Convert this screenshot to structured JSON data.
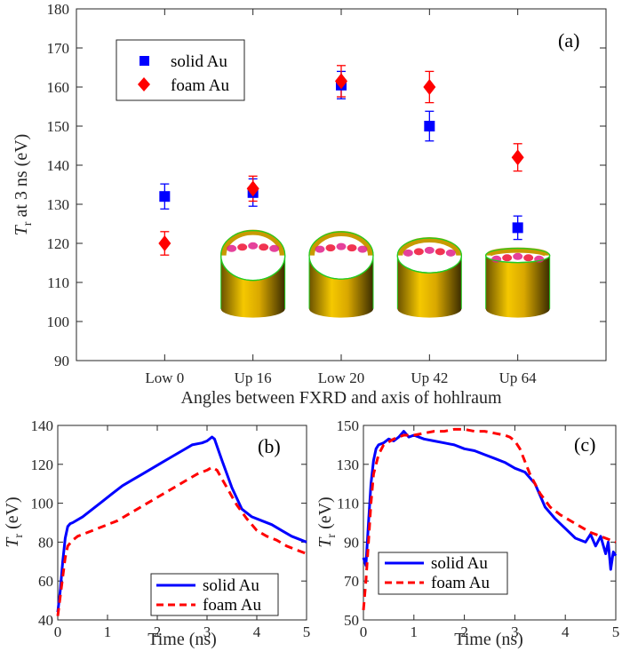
{
  "chart_data": [
    {
      "panel": "(a)",
      "type": "scatter",
      "xlabel": "Angles between FXRD and axis of hohlraum",
      "ylabel_main": "T",
      "ylabel_sub": "r",
      "ylabel_rest": " at 3 ns (eV)",
      "categories": [
        "Low 0",
        "Up 16",
        "Low 20",
        "Up 42",
        "Up 64"
      ],
      "ylim": [
        90,
        180
      ],
      "yticks": [
        "90",
        "100",
        "110",
        "120",
        "130",
        "140",
        "150",
        "160",
        "170",
        "180"
      ],
      "series": [
        {
          "name": "solid Au",
          "marker": "square",
          "color": "#0000ff",
          "values": [
            132,
            133,
            160.5,
            150,
            124
          ],
          "errors": [
            3.2,
            3.5,
            3.5,
            3.8,
            3
          ]
        },
        {
          "name": "foam Au",
          "marker": "diamond",
          "color": "#ff0000",
          "values": [
            120,
            134,
            161.5,
            160,
            142
          ],
          "errors": [
            3,
            3.2,
            4,
            4,
            3.5
          ]
        }
      ],
      "legend_position": "top-left",
      "grid": false,
      "insets": [
        {
          "category": "Up 16",
          "value": 111,
          "depth": 0.25
        },
        {
          "category": "Low 20",
          "value": 111,
          "depth": 0.3
        },
        {
          "category": "Up 42",
          "value": 111,
          "depth": 0.55
        },
        {
          "category": "Up 64",
          "value": 111,
          "depth": 1.0
        }
      ]
    },
    {
      "panel": "(b)",
      "type": "line",
      "xlabel": "Time (ns)",
      "ylabel_main": "T",
      "ylabel_sub": "r",
      "ylabel_rest": " (eV)",
      "xlim": [
        0,
        5
      ],
      "ylim": [
        40,
        140
      ],
      "xticks": [
        "0",
        "1",
        "2",
        "3",
        "4",
        "5"
      ],
      "yticks": [
        "40",
        "60",
        "80",
        "100",
        "120",
        "140"
      ],
      "series": [
        {
          "name": "solid Au",
          "color": "#0000ff",
          "style": "solid",
          "x": [
            0,
            0.05,
            0.1,
            0.15,
            0.2,
            0.25,
            0.3,
            0.5,
            0.7,
            0.9,
            1.1,
            1.3,
            1.5,
            1.7,
            1.9,
            2.1,
            2.3,
            2.5,
            2.7,
            2.9,
            3.0,
            3.1,
            3.15,
            3.3,
            3.5,
            3.7,
            3.9,
            4.1,
            4.3,
            4.5,
            4.7,
            4.9,
            5.0
          ],
          "y": [
            44,
            55,
            70,
            82,
            88,
            89.5,
            90,
            93,
            97,
            101,
            105,
            109,
            112,
            115,
            118,
            121,
            124,
            127,
            130,
            131,
            132,
            134,
            133,
            122,
            108,
            97,
            93,
            91,
            89,
            86,
            83,
            81,
            80
          ]
        },
        {
          "name": "foam Au",
          "color": "#ff0000",
          "style": "dashed",
          "x": [
            0,
            0.05,
            0.1,
            0.15,
            0.2,
            0.3,
            0.4,
            0.6,
            0.8,
            1.0,
            1.2,
            1.4,
            1.6,
            1.8,
            2.0,
            2.2,
            2.4,
            2.6,
            2.8,
            3.0,
            3.1,
            3.2,
            3.4,
            3.6,
            3.8,
            4.0,
            4.2,
            4.4,
            4.6,
            4.8,
            5.0
          ],
          "y": [
            42,
            52,
            62,
            72,
            78,
            81,
            83,
            85,
            87,
            89,
            91,
            94,
            97,
            100,
            103,
            106,
            109,
            112,
            115,
            117,
            118.5,
            117,
            108,
            99,
            92,
            86,
            83,
            81,
            78,
            76,
            74
          ]
        }
      ],
      "legend_position": "bottom-center",
      "grid": false
    },
    {
      "panel": "(c)",
      "type": "line",
      "xlabel": "Time (ns)",
      "ylabel_main": "T",
      "ylabel_sub": "r",
      "ylabel_rest": " (eV)",
      "xlim": [
        0,
        5
      ],
      "ylim": [
        50,
        150
      ],
      "xticks": [
        "0",
        "1",
        "2",
        "3",
        "4",
        "5"
      ],
      "yticks": [
        "50",
        "70",
        "90",
        "110",
        "130",
        "150"
      ],
      "series": [
        {
          "name": "solid Au",
          "color": "#0000ff",
          "style": "solid",
          "x": [
            0,
            0.05,
            0.1,
            0.15,
            0.2,
            0.25,
            0.3,
            0.4,
            0.5,
            0.6,
            0.7,
            0.8,
            0.9,
            1.0,
            1.2,
            1.4,
            1.6,
            1.8,
            2.0,
            2.2,
            2.4,
            2.6,
            2.8,
            3.0,
            3.2,
            3.4,
            3.6,
            3.8,
            4.0,
            4.2,
            4.4,
            4.5,
            4.6,
            4.7,
            4.8,
            4.85,
            4.9,
            4.95,
            5.0
          ],
          "y": [
            82,
            78,
            100,
            120,
            132,
            138,
            140,
            141,
            143,
            142,
            144,
            147,
            144,
            145,
            143,
            142,
            141,
            140,
            138,
            137,
            135,
            133,
            131,
            128,
            126,
            120,
            108,
            102,
            97,
            92,
            90,
            94,
            88,
            93,
            84,
            90,
            76,
            85,
            83
          ]
        },
        {
          "name": "foam Au",
          "color": "#ff0000",
          "style": "dashed",
          "x": [
            0,
            0.05,
            0.1,
            0.15,
            0.2,
            0.3,
            0.4,
            0.6,
            0.8,
            1.0,
            1.2,
            1.4,
            1.6,
            1.8,
            2.0,
            2.2,
            2.4,
            2.6,
            2.8,
            2.9,
            3.0,
            3.1,
            3.3,
            3.5,
            3.7,
            3.9,
            4.1,
            4.3,
            4.5,
            4.7,
            4.9,
            5.0
          ],
          "y": [
            55,
            70,
            90,
            110,
            125,
            135,
            140,
            143,
            145,
            145,
            146,
            147,
            147,
            148,
            148,
            147,
            147,
            146,
            145,
            144,
            142,
            138,
            125,
            115,
            108,
            104,
            101,
            98,
            95,
            93,
            91,
            90
          ]
        }
      ],
      "legend_position": "bottom-left",
      "grid": false
    }
  ]
}
